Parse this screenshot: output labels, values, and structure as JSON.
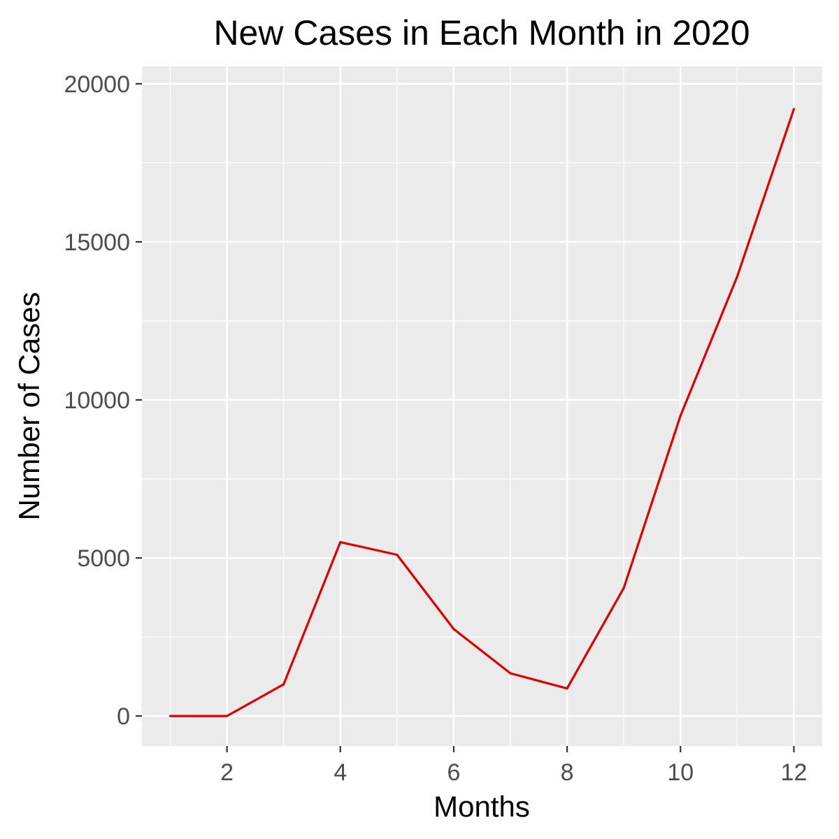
{
  "chart_data": {
    "type": "line",
    "title": "New Cases in Each Month in 2020",
    "xlabel": "Months",
    "ylabel": "Number of Cases",
    "x": [
      1,
      2,
      3,
      4,
      5,
      6,
      7,
      8,
      9,
      10,
      11,
      12
    ],
    "series": [
      {
        "values": [
          0,
          0,
          1000,
          5500,
          5100,
          2750,
          1350,
          870,
          4050,
          9500,
          13900,
          19200
        ],
        "color": "#e00000"
      }
    ],
    "xlim": [
      0.5,
      12.5
    ],
    "ylim": [
      -950,
      20550
    ],
    "x_ticks": [
      2,
      4,
      6,
      8,
      10,
      12
    ],
    "y_ticks": [
      0,
      5000,
      10000,
      15000,
      20000
    ],
    "y_tick_labels": [
      "0",
      "5000",
      "10000",
      "15000",
      "20000"
    ],
    "x_tick_labels": [
      "2",
      "4",
      "6",
      "8",
      "10",
      "12"
    ],
    "grid": true,
    "panel_background": "#ebebeb",
    "grid_color": "#ffffff",
    "legend": "none"
  }
}
